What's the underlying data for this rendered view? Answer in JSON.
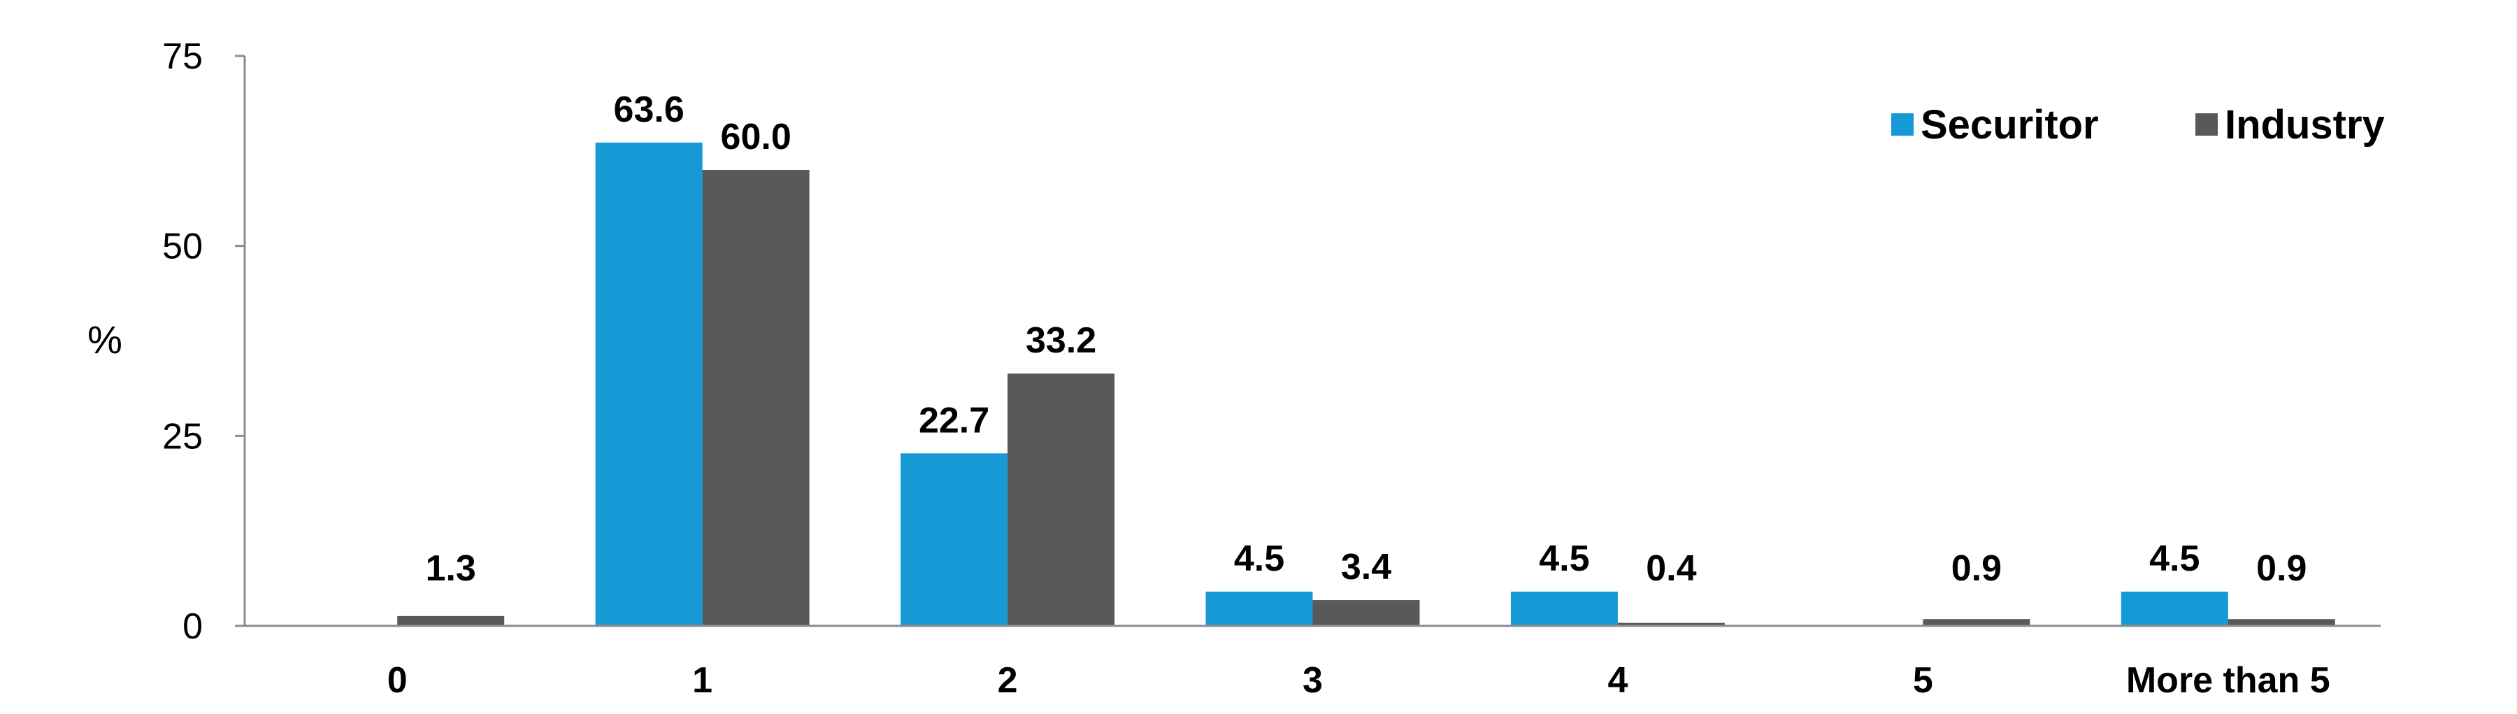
{
  "chart_data": {
    "type": "bar",
    "title": "",
    "xlabel": "",
    "ylabel": "%",
    "ylim": [
      0,
      75
    ],
    "yticks": [
      0,
      25,
      50,
      75
    ],
    "grid": false,
    "legend_position": "top-right",
    "categories": [
      "0",
      "1",
      "2",
      "3",
      "4",
      "5",
      "More than 5"
    ],
    "series": [
      {
        "name": "Securitor",
        "color": "#1799D6",
        "values": [
          null,
          63.6,
          22.7,
          4.5,
          4.5,
          null,
          4.5
        ],
        "labels": [
          "",
          "63.6",
          "22.7",
          "4.5",
          "4.5",
          "",
          "4.5"
        ]
      },
      {
        "name": "Industry",
        "color": "#595959",
        "values": [
          1.3,
          60.0,
          33.2,
          3.4,
          0.4,
          0.9,
          0.9
        ],
        "labels": [
          "1.3",
          "60.0",
          "33.2",
          "3.4",
          "0.4",
          "0.9",
          "0.9"
        ]
      }
    ]
  }
}
